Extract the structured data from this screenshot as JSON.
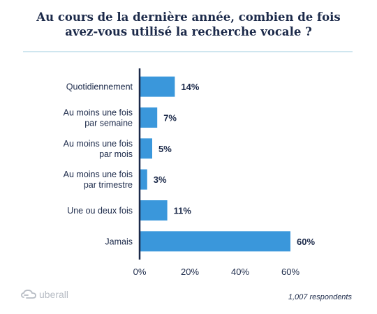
{
  "title_lines": [
    "Au cours de la dernière année, combien de fois",
    "avez-vous utilisé la recherche vocale ?"
  ],
  "chart_data": {
    "type": "bar",
    "orientation": "horizontal",
    "categories": [
      [
        "Quotidiennement"
      ],
      [
        "Au moins une fois",
        "par semaine"
      ],
      [
        "Au moins une fois",
        "par mois"
      ],
      [
        "Au moins une fois",
        "par trimestre"
      ],
      [
        "Une ou deux fois"
      ],
      [
        "Jamais"
      ]
    ],
    "values": [
      14,
      7,
      5,
      3,
      11,
      60
    ],
    "value_labels": [
      "14%",
      "7%",
      "5%",
      "3%",
      "11%",
      "60%"
    ],
    "xlim": [
      0,
      60
    ],
    "xticks": [
      0,
      20,
      40,
      60
    ],
    "xtick_labels": [
      "0%",
      "20%",
      "40%",
      "60%"
    ],
    "bar_color": "#3a97db",
    "axis_color": "#1c2a4a",
    "grid": false
  },
  "brand": {
    "name": "uberall",
    "icon": "uberall-logo-icon",
    "color": "#b7bcc4"
  },
  "footnote": "1,007 respondents"
}
